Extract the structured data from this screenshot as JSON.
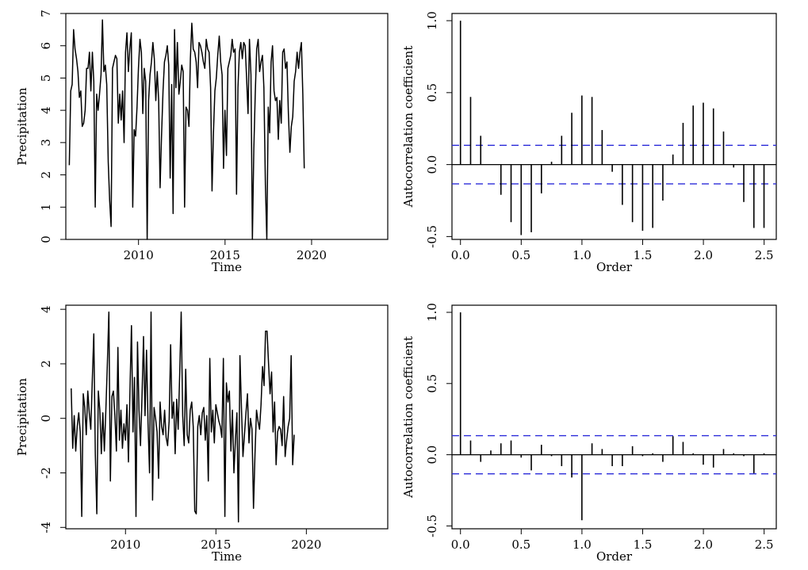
{
  "chart_data": [
    {
      "type": "line",
      "xlabel": "Time",
      "ylabel": "Precipitation",
      "xlim": [
        2005.8,
        2024.4
      ],
      "ylim": [
        0,
        7
      ],
      "xticks": [
        2010,
        2015,
        2020
      ],
      "yticks": [
        0,
        1,
        2,
        3,
        4,
        5,
        6,
        7
      ],
      "start": 2006.0,
      "step": 0.0833,
      "values": [
        2.3,
        4.6,
        4.8,
        6.5,
        5.9,
        5.6,
        5.2,
        4.4,
        4.6,
        3.5,
        3.6,
        4.0,
        5.3,
        5.3,
        5.8,
        4.6,
        5.8,
        4.9,
        1.0,
        4.5,
        4.0,
        4.5,
        5.1,
        6.8,
        5.2,
        5.4,
        4.8,
        2.4,
        1.2,
        0.4,
        5.3,
        5.5,
        5.7,
        5.6,
        3.6,
        4.5,
        3.7,
        4.6,
        3.0,
        5.8,
        6.4,
        5.2,
        5.9,
        6.4,
        1.0,
        3.4,
        3.2,
        4.1,
        5.3,
        6.2,
        5.8,
        3.9,
        5.3,
        4.9,
        0.0,
        4.3,
        5.1,
        5.5,
        6.1,
        5.6,
        4.3,
        5.2,
        4.3,
        1.6,
        3.2,
        4.6,
        5.5,
        5.7,
        6.0,
        5.4,
        1.9,
        4.8,
        0.8,
        6.5,
        4.7,
        6.1,
        4.5,
        4.9,
        5.4,
        5.2,
        1.0,
        4.1,
        4.0,
        3.5,
        5.6,
        6.7,
        5.9,
        5.8,
        5.5,
        4.7,
        6.1,
        6.0,
        5.8,
        5.5,
        5.3,
        6.2,
        5.9,
        5.8,
        4.7,
        1.5,
        3.3,
        4.6,
        5.0,
        5.7,
        6.3,
        5.5,
        5.1,
        2.2,
        4.0,
        2.6,
        5.3,
        5.5,
        5.7,
        6.2,
        5.8,
        5.9,
        1.4,
        4.7,
        5.8,
        6.1,
        5.6,
        6.1,
        6.0,
        5.0,
        3.9,
        6.2,
        5.1,
        0.0,
        2.8,
        4.5,
        5.9,
        6.2,
        5.2,
        5.5,
        5.7,
        4.7,
        1.7,
        0.0,
        4.1,
        3.3,
        5.5,
        6.0,
        4.6,
        4.3,
        4.4,
        3.1,
        4.3,
        3.6,
        5.8,
        5.9,
        5.3,
        5.5,
        3.9,
        2.7,
        3.5,
        3.8,
        4.9,
        5.2,
        5.8,
        5.3,
        5.8,
        6.1,
        4.5,
        2.2
      ]
    },
    {
      "type": "bar",
      "xlabel": "Order",
      "ylabel": "Autocorrelation coefficient",
      "xlim": [
        -0.07,
        2.6
      ],
      "ylim": [
        -0.52,
        1.05
      ],
      "xticks": [
        0.0,
        0.5,
        1.0,
        1.5,
        2.0,
        2.5
      ],
      "xtick_labels": [
        "0.0",
        "0.5",
        "1.0",
        "1.5",
        "2.0",
        "2.5"
      ],
      "yticks": [
        -0.5,
        0.0,
        0.5,
        1.0
      ],
      "ytick_labels": [
        "-0.5",
        "0.0",
        "0.5",
        "1.0"
      ],
      "conf_limit": 0.134,
      "lag_step": 0.0833,
      "values": [
        1.0,
        0.47,
        0.2,
        0.0,
        -0.21,
        -0.4,
        -0.49,
        -0.47,
        -0.2,
        0.02,
        0.2,
        0.36,
        0.48,
        0.47,
        0.24,
        -0.05,
        -0.28,
        -0.4,
        -0.46,
        -0.44,
        -0.25,
        0.07,
        0.29,
        0.41,
        0.43,
        0.39,
        0.23,
        -0.02,
        -0.26,
        -0.44,
        -0.44
      ]
    },
    {
      "type": "line",
      "xlabel": "Time",
      "ylabel": "Precipitation",
      "xlim": [
        2006.7,
        2024.5
      ],
      "ylim": [
        -4.05,
        4.15
      ],
      "xticks": [
        2010,
        2015,
        2020
      ],
      "yticks": [
        -4,
        -2,
        0,
        2,
        4
      ],
      "start": 2007.0,
      "step": 0.0833,
      "values": [
        1.1,
        -1.1,
        0.1,
        -1.2,
        -0.3,
        0.2,
        -0.5,
        -3.6,
        0.9,
        0.4,
        -0.6,
        1.0,
        0.2,
        -0.4,
        1.4,
        3.1,
        -1.3,
        -3.5,
        1.0,
        0.3,
        -1.3,
        0.2,
        -1.2,
        0.3,
        2.0,
        3.9,
        -2.3,
        0.8,
        1.0,
        0.1,
        -1.2,
        2.6,
        -0.8,
        0.3,
        -1.1,
        -0.2,
        -0.8,
        0.5,
        -1.6,
        1.0,
        3.4,
        -0.5,
        1.5,
        -3.6,
        2.8,
        0.3,
        -1.0,
        0.8,
        3.0,
        0.1,
        2.5,
        -0.2,
        -2.0,
        3.9,
        -3.0,
        0.4,
        0.0,
        -0.5,
        -2.2,
        0.6,
        -0.3,
        -0.6,
        0.3,
        -0.7,
        -1.0,
        -0.1,
        2.7,
        0.0,
        0.6,
        -1.3,
        0.7,
        -0.4,
        1.6,
        3.9,
        0.1,
        -1.0,
        1.8,
        -0.6,
        -0.9,
        0.3,
        0.6,
        -0.3,
        -3.4,
        -3.5,
        -0.3,
        0.1,
        -0.6,
        0.2,
        0.4,
        -0.8,
        0.1,
        -2.3,
        2.2,
        -0.5,
        0.3,
        -0.9,
        0.5,
        0.2,
        -0.1,
        -0.3,
        -0.7,
        2.2,
        -3.6,
        1.3,
        0.6,
        1.0,
        -1.2,
        0.3,
        -2.0,
        -0.8,
        0.2,
        -3.8,
        2.3,
        0.4,
        -1.4,
        -0.6,
        0.2,
        0.9,
        -0.9,
        0.0,
        -0.4,
        -3.3,
        -1.3,
        0.3,
        -0.1,
        -0.4,
        0.5,
        1.9,
        1.2,
        3.2,
        3.2,
        2.0,
        0.9,
        1.7,
        -0.5,
        0.6,
        -1.7,
        -0.5,
        -0.3,
        -0.4,
        -1.0,
        0.8,
        -1.4,
        -0.8,
        -0.3,
        0.0,
        2.3,
        -1.7,
        -0.6
      ]
    },
    {
      "type": "bar",
      "xlabel": "Order",
      "ylabel": "Autocorrelation coefficient",
      "xlim": [
        -0.07,
        2.6
      ],
      "ylim": [
        -0.52,
        1.05
      ],
      "xticks": [
        0.0,
        0.5,
        1.0,
        1.5,
        2.0,
        2.5
      ],
      "xtick_labels": [
        "0.0",
        "0.5",
        "1.0",
        "1.5",
        "2.0",
        "2.5"
      ],
      "yticks": [
        -0.5,
        0.0,
        0.5,
        1.0
      ],
      "ytick_labels": [
        "-0.5",
        "0.0",
        "0.5",
        "1.0"
      ],
      "conf_limit": 0.134,
      "lag_step": 0.0833,
      "values": [
        1.0,
        0.1,
        -0.05,
        0.03,
        0.08,
        0.1,
        -0.02,
        -0.11,
        0.07,
        -0.01,
        -0.08,
        -0.16,
        -0.46,
        0.08,
        0.04,
        -0.08,
        -0.08,
        0.06,
        -0.01,
        0.01,
        -0.05,
        0.13,
        0.09,
        0.01,
        -0.07,
        -0.09,
        0.04,
        0.01,
        -0.01,
        -0.13,
        0.01
      ]
    }
  ]
}
